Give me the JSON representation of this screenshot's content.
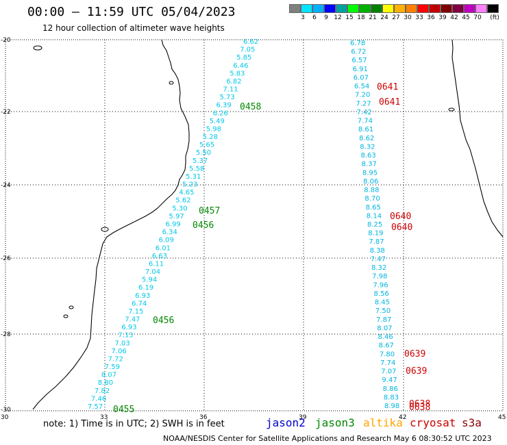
{
  "title": "00:00 – 11:59 UTC 05/04/2023",
  "subtitle": "12 hour collection of altimeter wave heights",
  "scale": {
    "unit": "(ft)",
    "colors": [
      "#808080",
      "#00e5ff",
      "#00b0ff",
      "#0000ff",
      "#00a0a0",
      "#00ff00",
      "#00b000",
      "#008000",
      "#ffff00",
      "#ffb000",
      "#ff8000",
      "#ff0000",
      "#c00000",
      "#800000",
      "#800040",
      "#c000c0",
      "#ff80ff",
      "#000000"
    ],
    "labels": [
      "3",
      "6",
      "9",
      "12",
      "15",
      "18",
      "21",
      "24",
      "27",
      "30",
      "33",
      "36",
      "39",
      "42",
      "45",
      "70"
    ]
  },
  "axes": {
    "lon_ticks": [
      "30",
      "33",
      "36",
      "39",
      "42",
      "45"
    ],
    "lat_ticks": [
      "-20",
      "-22",
      "-24",
      "-26",
      "-28",
      "-30"
    ]
  },
  "note": "note: 1) Time is in UTC; 2) SWH is in feet",
  "legend": {
    "jason2": {
      "label": "jason2",
      "color": "#0000cc"
    },
    "jason3": {
      "label": "jason3",
      "color": "#008800"
    },
    "altika": {
      "label": "altika",
      "color": "#ffa500"
    },
    "cryosat": {
      "label": "cryosat",
      "color": "#cc0000"
    },
    "s3a": {
      "label": "s3a",
      "color": "#8b0000"
    }
  },
  "credit": "NOAA/NESDIS Center for Satellite Applications and Research   May  6 08:30:52 UTC 2023",
  "track_west": {
    "color": "#00c8e8",
    "values": [
      "6.62",
      "7.05",
      "5.85",
      "6.46",
      "5.83",
      "6.82",
      "7.11",
      "5.73",
      "6.39",
      "6.26",
      "5.49",
      "5.98",
      "5.28",
      "5.65",
      "5.50",
      "5.37",
      "5.58",
      "5.31",
      "5.23",
      "4.65",
      "5.62",
      "5.30",
      "5.97",
      "6.99",
      "6.34",
      "6.09",
      "6.01",
      "6.63",
      "6.11",
      "7.04",
      "5.94",
      "6.19",
      "6.93",
      "6.74",
      "7.15",
      "7.47",
      "6.93",
      "7.13",
      "7.03",
      "7.06",
      "7.72",
      "7.59",
      "8.07",
      "8.80",
      "7.82",
      "7.46",
      "7.57"
    ]
  },
  "track_east": {
    "color": "#00b4e0",
    "values": [
      "6.78",
      "6.72",
      "6.57",
      "6.91",
      "6.07",
      "6.54",
      "7.20",
      "7.27",
      "7.42",
      "7.74",
      "8.61",
      "8.62",
      "8.32",
      "8.63",
      "8.37",
      "8.95",
      "8.06",
      "8.88",
      "8.70",
      "8.65",
      "8.14",
      "8.25",
      "8.19",
      "7.87",
      "8.38",
      "7.47",
      "8.32",
      "7.98",
      "7.96",
      "8.56",
      "8.45",
      "7.50",
      "7.87",
      "8.07",
      "8.46",
      "8.67",
      "7.80",
      "7.74",
      "7.07",
      "9.47",
      "8.86",
      "8.83",
      "8.98"
    ]
  },
  "time_labels": [
    {
      "text": "0458",
      "sat": "jason3"
    },
    {
      "text": "0457",
      "sat": "jason3"
    },
    {
      "text": "0456",
      "sat": "jason3"
    },
    {
      "text": "0456",
      "sat": "jason3"
    },
    {
      "text": "0455",
      "sat": "jason3"
    },
    {
      "text": "0641",
      "sat": "cryosat"
    },
    {
      "text": "0641",
      "sat": "cryosat"
    },
    {
      "text": "0640",
      "sat": "cryosat"
    },
    {
      "text": "0640",
      "sat": "cryosat"
    },
    {
      "text": "0639",
      "sat": "cryosat"
    },
    {
      "text": "0639",
      "sat": "cryosat"
    },
    {
      "text": "0638",
      "sat": "cryosat"
    },
    {
      "text": "0638",
      "sat": "cryosat"
    }
  ]
}
